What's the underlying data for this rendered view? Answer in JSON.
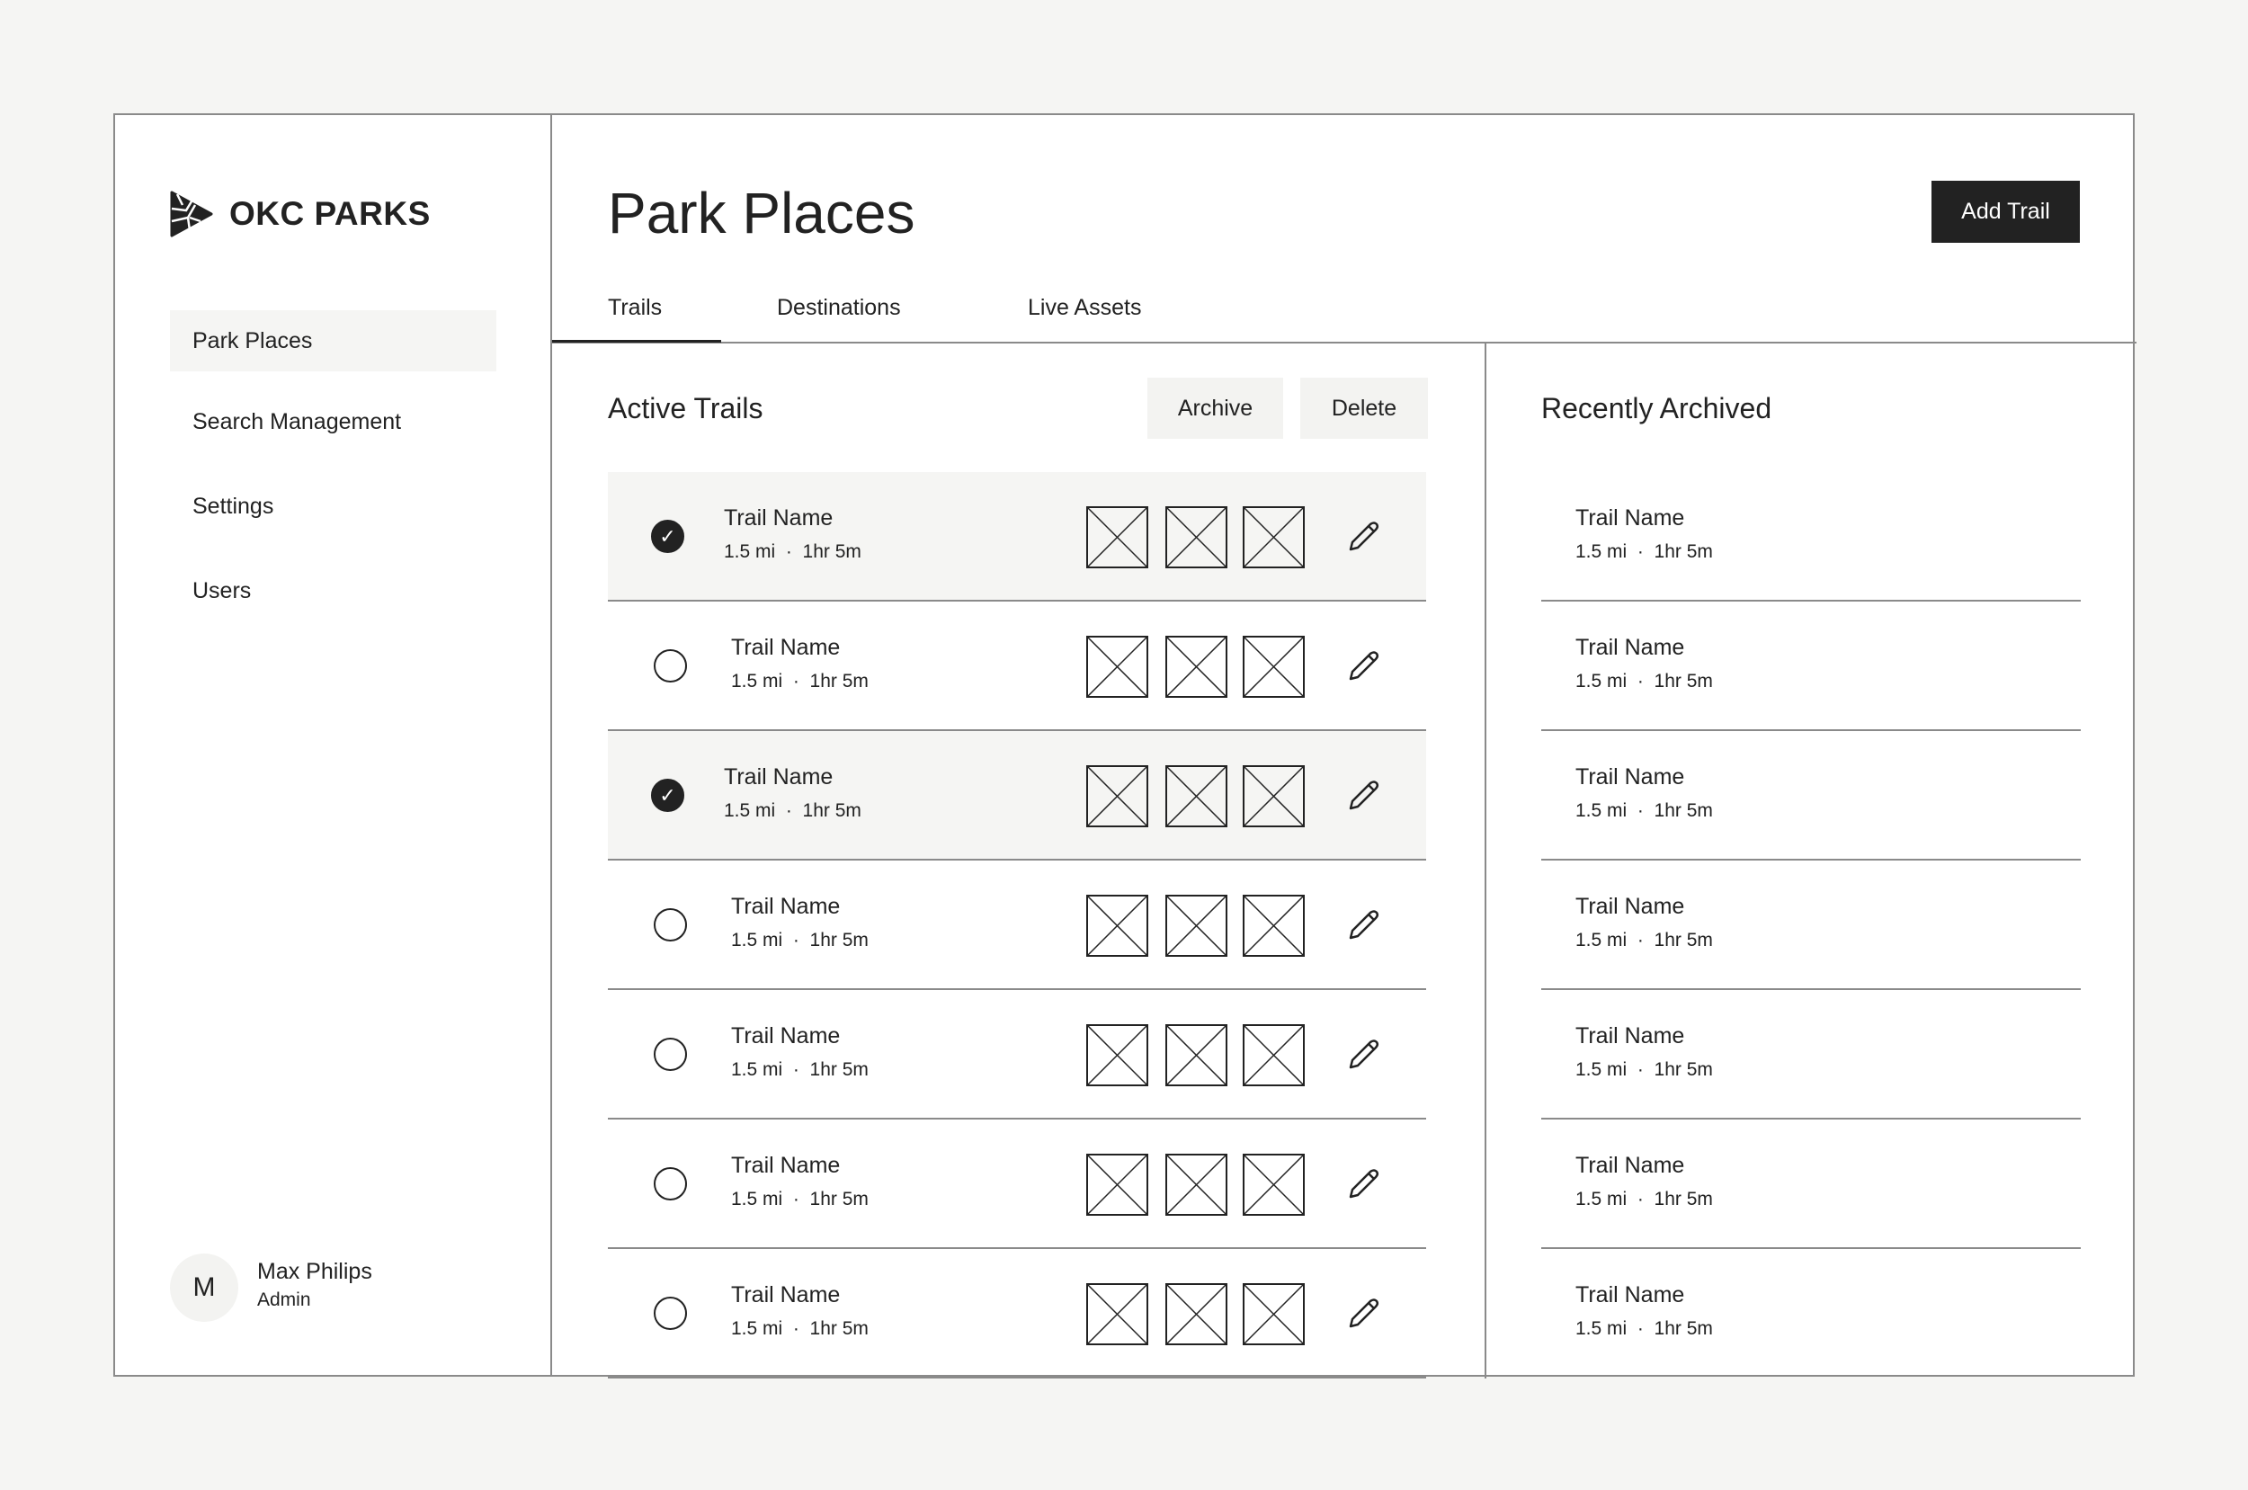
{
  "brand": {
    "name": "OKC PARKS"
  },
  "sidebar": {
    "items": [
      {
        "label": "Park Places",
        "active": true
      },
      {
        "label": "Search Management"
      },
      {
        "label": "Settings"
      },
      {
        "label": "Users"
      }
    ]
  },
  "user": {
    "initial": "M",
    "name": "Max Philips",
    "role": "Admin"
  },
  "header": {
    "title": "Park Places",
    "add_label": "Add Trail"
  },
  "tabs": [
    {
      "label": "Trails",
      "active": true
    },
    {
      "label": "Destinations"
    },
    {
      "label": "Live Assets"
    }
  ],
  "active": {
    "title": "Active Trails",
    "archive_label": "Archive",
    "delete_label": "Delete",
    "rows": [
      {
        "name": "Trail Name",
        "meta": "1.5 mi  ·  1hr 5m",
        "selected": true
      },
      {
        "name": "Trail Name",
        "meta": "1.5 mi  ·  1hr 5m",
        "selected": false
      },
      {
        "name": "Trail Name",
        "meta": "1.5 mi  ·  1hr 5m",
        "selected": true
      },
      {
        "name": "Trail Name",
        "meta": "1.5 mi  ·  1hr 5m",
        "selected": false
      },
      {
        "name": "Trail Name",
        "meta": "1.5 mi  ·  1hr 5m",
        "selected": false
      },
      {
        "name": "Trail Name",
        "meta": "1.5 mi  ·  1hr 5m",
        "selected": false
      },
      {
        "name": "Trail Name",
        "meta": "1.5 mi  ·  1hr 5m",
        "selected": false
      }
    ]
  },
  "archived": {
    "title": "Recently Archived",
    "rows": [
      {
        "name": "Trail Name",
        "meta": "1.5 mi  ·  1hr 5m"
      },
      {
        "name": "Trail Name",
        "meta": "1.5 mi  ·  1hr 5m"
      },
      {
        "name": "Trail Name",
        "meta": "1.5 mi  ·  1hr 5m"
      },
      {
        "name": "Trail Name",
        "meta": "1.5 mi  ·  1hr 5m"
      },
      {
        "name": "Trail Name",
        "meta": "1.5 mi  ·  1hr 5m"
      },
      {
        "name": "Trail Name",
        "meta": "1.5 mi  ·  1hr 5m"
      },
      {
        "name": "Trail Name",
        "meta": "1.5 mi  ·  1hr 5m"
      }
    ]
  }
}
